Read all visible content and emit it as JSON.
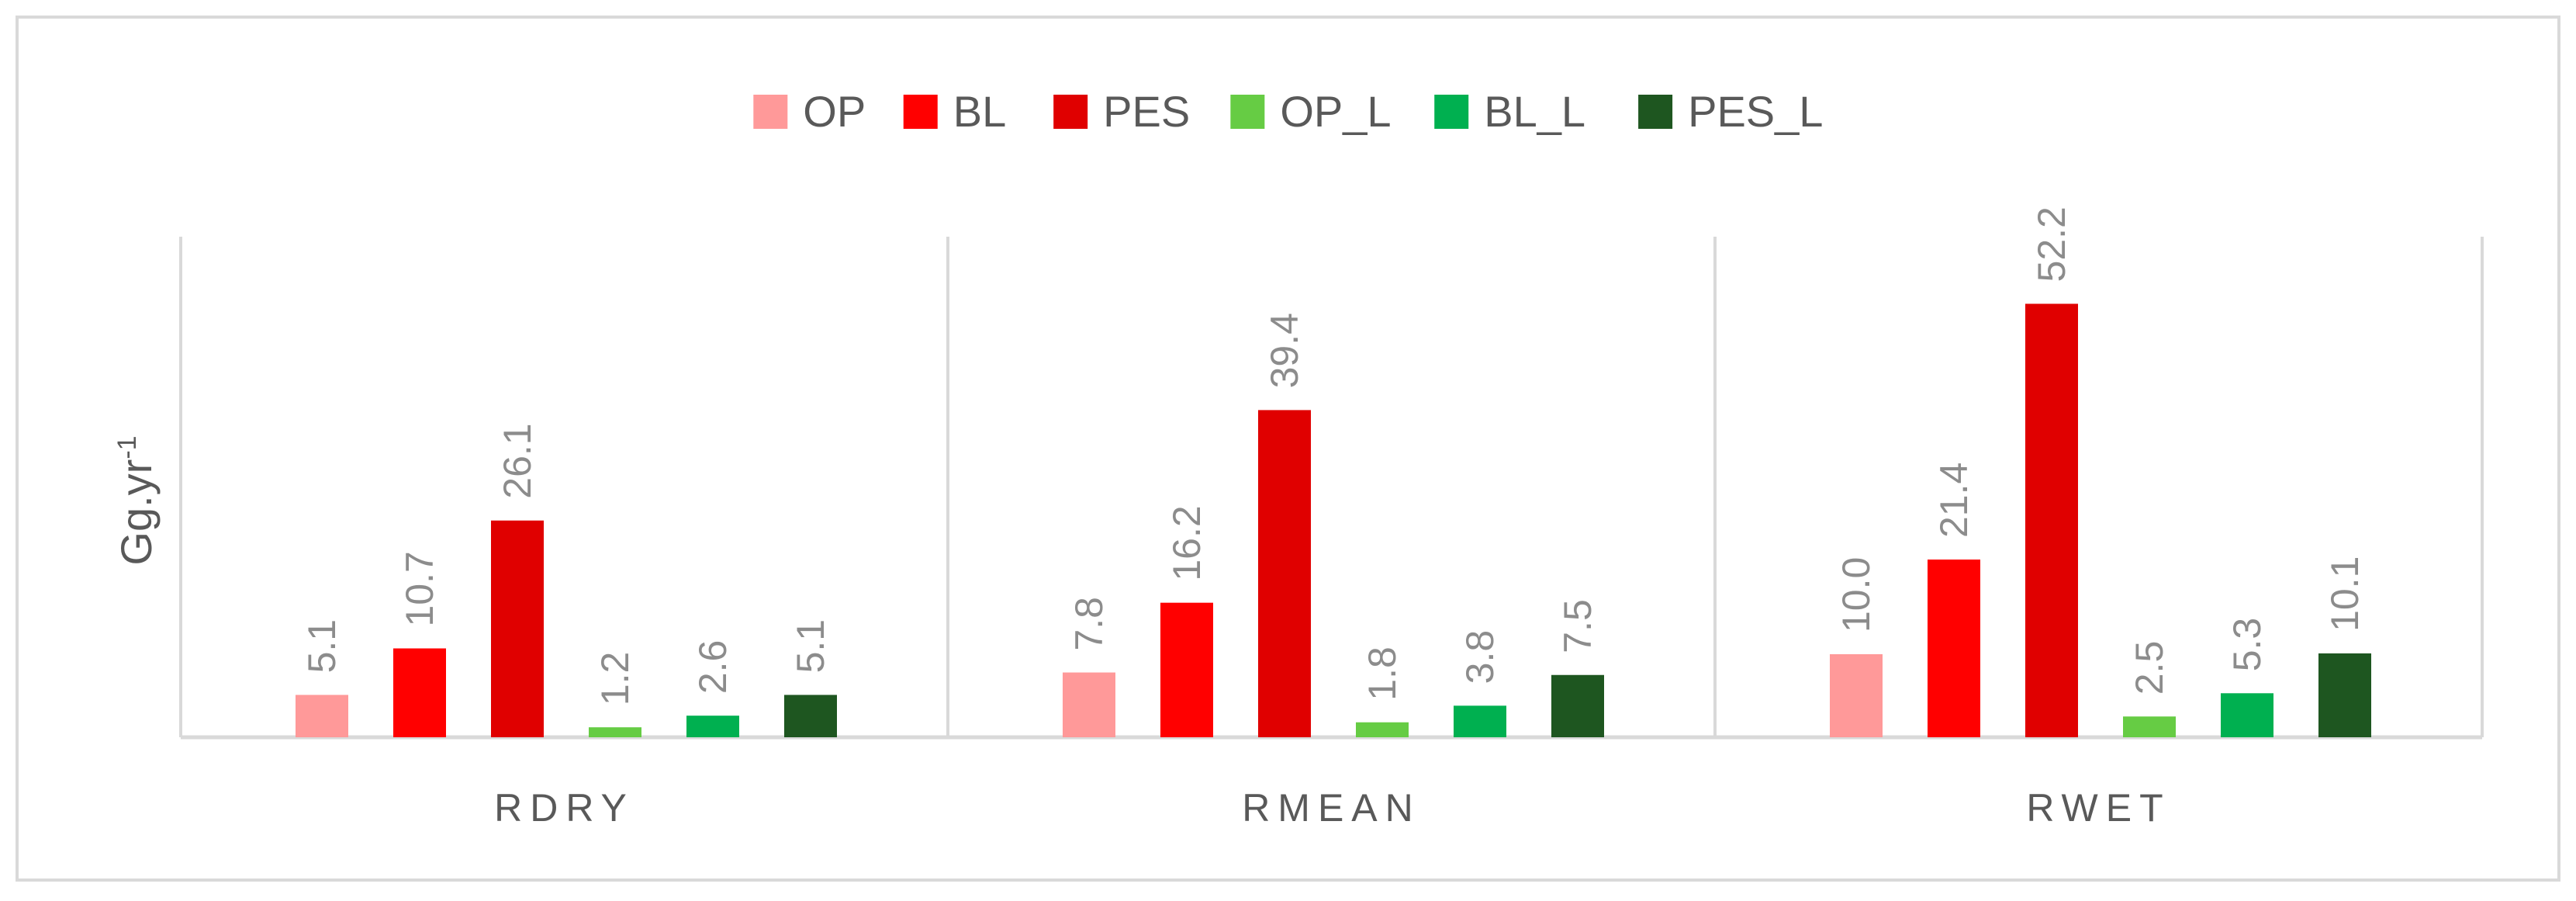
{
  "chart_data": {
    "type": "bar",
    "title": "",
    "xlabel": "",
    "ylabel": "Gg.yr",
    "ylabel_superscript": "-1",
    "categories": [
      "RDRY",
      "RMEAN",
      "RWET"
    ],
    "series": [
      {
        "name": "OP",
        "color": "#ff9999",
        "values": [
          5.1,
          7.8,
          10.0
        ]
      },
      {
        "name": "BL",
        "color": "#ff0000",
        "values": [
          10.7,
          16.2,
          21.4
        ]
      },
      {
        "name": "PES",
        "color": "#e00000",
        "values": [
          26.1,
          39.4,
          52.2
        ]
      },
      {
        "name": "OP_L",
        "color": "#66cc44",
        "values": [
          1.2,
          1.8,
          2.5
        ]
      },
      {
        "name": "BL_L",
        "color": "#00b050",
        "values": [
          2.6,
          3.8,
          5.3
        ]
      },
      {
        "name": "PES_L",
        "color": "#1e5620",
        "values": [
          5.1,
          7.5,
          10.1
        ]
      }
    ],
    "data_labels": true,
    "ylim": [
      0,
      60
    ],
    "grid": false,
    "legend_position": "top",
    "label_color": "#8c8c8c",
    "axis_text_color": "#595959",
    "axis_line_color": "#d9d9d9"
  }
}
